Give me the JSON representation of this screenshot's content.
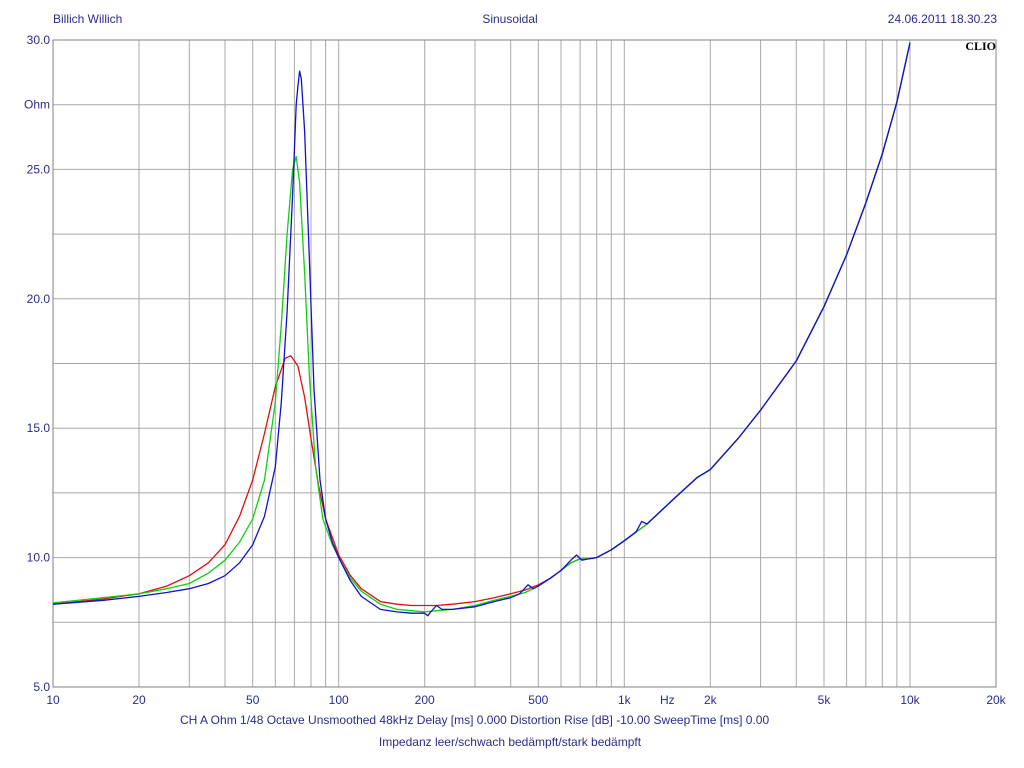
{
  "header": {
    "left": "Billich Willich",
    "center": "Sinusoidal",
    "right": "24.06.2011 18.30.23"
  },
  "logo_text": "CLIO",
  "footer": {
    "settings": "CH A   Ohm   1/48 Octave   Unsmoothed   48kHz   Delay [ms] 0.000   Distortion Rise [dB] -10.00   SweepTime [ms] 0.00",
    "caption": "Impedanz leer/schwach bedämpft/stark bedämpft"
  },
  "colors": {
    "grid": "#a8a8a8",
    "frame": "#808080",
    "text": "#2b2b8a",
    "red": "#e01010",
    "green": "#10d010",
    "blue": "#1010d0"
  },
  "chart_data": {
    "type": "line",
    "title": "",
    "xlabel": "Hz",
    "ylabel": "Ohm",
    "xscale": "log",
    "xlim": [
      10,
      20000
    ],
    "ylim": [
      5,
      30
    ],
    "grid": true,
    "x_tick_labels": [
      {
        "v": 10,
        "t": "10"
      },
      {
        "v": 20,
        "t": "20"
      },
      {
        "v": 50,
        "t": "50"
      },
      {
        "v": 100,
        "t": "100"
      },
      {
        "v": 200,
        "t": "200"
      },
      {
        "v": 500,
        "t": "500"
      },
      {
        "v": 1000,
        "t": "1k"
      },
      {
        "v": 2000,
        "t": "2k"
      },
      {
        "v": 5000,
        "t": "5k"
      },
      {
        "v": 10000,
        "t": "10k"
      },
      {
        "v": 20000,
        "t": "20k"
      }
    ],
    "x_unit_label": {
      "v": 1414,
      "t": "Hz"
    },
    "y_tick_labels": [
      {
        "v": 5,
        "t": "5.0"
      },
      {
        "v": 10,
        "t": "10.0"
      },
      {
        "v": 15,
        "t": "15.0"
      },
      {
        "v": 20,
        "t": "20.0"
      },
      {
        "v": 25,
        "t": "25.0"
      },
      {
        "v": 30,
        "t": "30.0"
      }
    ],
    "y_unit_label": {
      "v": 27.5,
      "t": "Ohm"
    },
    "series": [
      {
        "color": "red",
        "points": [
          [
            10,
            8.2
          ],
          [
            15,
            8.4
          ],
          [
            20,
            8.6
          ],
          [
            25,
            8.9
          ],
          [
            30,
            9.3
          ],
          [
            35,
            9.8
          ],
          [
            40,
            10.5
          ],
          [
            45,
            11.6
          ],
          [
            50,
            13.0
          ],
          [
            55,
            14.8
          ],
          [
            60,
            16.6
          ],
          [
            65,
            17.7
          ],
          [
            68,
            17.8
          ],
          [
            72,
            17.4
          ],
          [
            76,
            16.2
          ],
          [
            80,
            14.6
          ],
          [
            85,
            12.8
          ],
          [
            90,
            11.5
          ],
          [
            100,
            10.1
          ],
          [
            110,
            9.3
          ],
          [
            120,
            8.8
          ],
          [
            140,
            8.3
          ],
          [
            160,
            8.2
          ],
          [
            180,
            8.15
          ],
          [
            200,
            8.15
          ],
          [
            220,
            8.15
          ],
          [
            250,
            8.2
          ],
          [
            300,
            8.3
          ],
          [
            350,
            8.45
          ],
          [
            400,
            8.6
          ],
          [
            450,
            8.75
          ],
          [
            500,
            8.95
          ],
          [
            550,
            9.2
          ],
          [
            600,
            9.5
          ],
          [
            650,
            9.8
          ],
          [
            700,
            9.95
          ],
          [
            750,
            9.95
          ],
          [
            800,
            10.0
          ],
          [
            900,
            10.3
          ],
          [
            1000,
            10.65
          ],
          [
            1200,
            11.3
          ],
          [
            1500,
            12.3
          ],
          [
            1800,
            13.1
          ],
          [
            2000,
            13.4
          ],
          [
            2500,
            14.6
          ],
          [
            3000,
            15.7
          ],
          [
            4000,
            17.6
          ],
          [
            5000,
            19.7
          ],
          [
            6000,
            21.7
          ],
          [
            7000,
            23.7
          ],
          [
            8000,
            25.6
          ],
          [
            9000,
            27.6
          ],
          [
            10000,
            29.9
          ]
        ]
      },
      {
        "color": "green",
        "points": [
          [
            10,
            8.25
          ],
          [
            15,
            8.45
          ],
          [
            20,
            8.6
          ],
          [
            25,
            8.8
          ],
          [
            30,
            9.0
          ],
          [
            35,
            9.4
          ],
          [
            40,
            9.9
          ],
          [
            45,
            10.6
          ],
          [
            50,
            11.5
          ],
          [
            55,
            13.0
          ],
          [
            60,
            16.0
          ],
          [
            63,
            19.0
          ],
          [
            66,
            22.5
          ],
          [
            69,
            25.0
          ],
          [
            71,
            25.5
          ],
          [
            73,
            24.5
          ],
          [
            76,
            21.0
          ],
          [
            79,
            17.0
          ],
          [
            83,
            13.5
          ],
          [
            88,
            11.5
          ],
          [
            95,
            10.5
          ],
          [
            100,
            10.0
          ],
          [
            110,
            9.2
          ],
          [
            120,
            8.7
          ],
          [
            140,
            8.2
          ],
          [
            160,
            8.0
          ],
          [
            180,
            7.95
          ],
          [
            200,
            7.9
          ],
          [
            220,
            7.95
          ],
          [
            250,
            8.0
          ],
          [
            300,
            8.15
          ],
          [
            350,
            8.35
          ],
          [
            400,
            8.5
          ],
          [
            450,
            8.65
          ],
          [
            500,
            8.9
          ],
          [
            550,
            9.2
          ],
          [
            600,
            9.5
          ],
          [
            650,
            9.8
          ],
          [
            700,
            9.95
          ],
          [
            750,
            9.95
          ],
          [
            800,
            10.0
          ],
          [
            900,
            10.3
          ],
          [
            1000,
            10.65
          ],
          [
            1200,
            11.3
          ],
          [
            1500,
            12.3
          ],
          [
            1800,
            13.1
          ],
          [
            2000,
            13.4
          ],
          [
            2500,
            14.6
          ],
          [
            3000,
            15.7
          ],
          [
            4000,
            17.6
          ],
          [
            5000,
            19.7
          ],
          [
            6000,
            21.7
          ],
          [
            7000,
            23.7
          ],
          [
            8000,
            25.6
          ],
          [
            9000,
            27.6
          ],
          [
            10000,
            29.9
          ]
        ]
      },
      {
        "color": "blue",
        "points": [
          [
            10,
            8.2
          ],
          [
            15,
            8.35
          ],
          [
            20,
            8.5
          ],
          [
            25,
            8.65
          ],
          [
            30,
            8.8
          ],
          [
            35,
            9.0
          ],
          [
            40,
            9.3
          ],
          [
            45,
            9.8
          ],
          [
            50,
            10.5
          ],
          [
            55,
            11.6
          ],
          [
            60,
            13.5
          ],
          [
            63,
            16.0
          ],
          [
            66,
            19.5
          ],
          [
            69,
            24.0
          ],
          [
            71,
            27.5
          ],
          [
            72,
            28.2
          ],
          [
            73,
            28.8
          ],
          [
            74,
            28.5
          ],
          [
            76,
            26.5
          ],
          [
            79,
            21.5
          ],
          [
            82,
            16.5
          ],
          [
            86,
            13.0
          ],
          [
            90,
            11.5
          ],
          [
            95,
            10.6
          ],
          [
            100,
            10.0
          ],
          [
            110,
            9.1
          ],
          [
            120,
            8.5
          ],
          [
            140,
            8.0
          ],
          [
            160,
            7.9
          ],
          [
            180,
            7.85
          ],
          [
            200,
            7.85
          ],
          [
            205,
            7.75
          ],
          [
            210,
            7.9
          ],
          [
            220,
            8.15
          ],
          [
            230,
            8.0
          ],
          [
            250,
            8.0
          ],
          [
            300,
            8.1
          ],
          [
            350,
            8.3
          ],
          [
            400,
            8.45
          ],
          [
            430,
            8.6
          ],
          [
            460,
            8.95
          ],
          [
            480,
            8.8
          ],
          [
            500,
            8.9
          ],
          [
            550,
            9.2
          ],
          [
            600,
            9.5
          ],
          [
            650,
            9.9
          ],
          [
            680,
            10.1
          ],
          [
            710,
            9.9
          ],
          [
            750,
            9.95
          ],
          [
            800,
            10.0
          ],
          [
            900,
            10.3
          ],
          [
            1000,
            10.65
          ],
          [
            1100,
            11.0
          ],
          [
            1150,
            11.4
          ],
          [
            1200,
            11.3
          ],
          [
            1500,
            12.3
          ],
          [
            1800,
            13.1
          ],
          [
            2000,
            13.4
          ],
          [
            2500,
            14.6
          ],
          [
            3000,
            15.7
          ],
          [
            4000,
            17.6
          ],
          [
            5000,
            19.7
          ],
          [
            6000,
            21.7
          ],
          [
            7000,
            23.7
          ],
          [
            8000,
            25.6
          ],
          [
            9000,
            27.6
          ],
          [
            10000,
            29.9
          ]
        ]
      }
    ]
  }
}
